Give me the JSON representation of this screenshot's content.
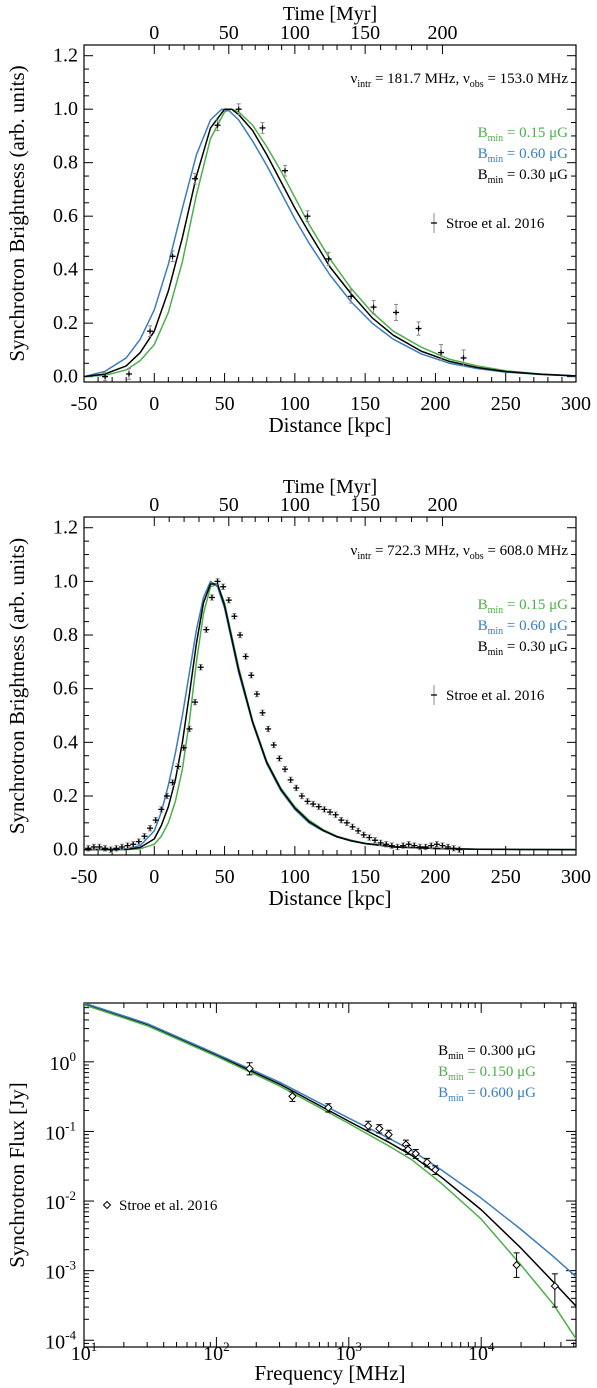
{
  "chart_data": [
    {
      "type": "line",
      "panel": "top",
      "xlabel": "Distance [kpc]",
      "ylabel": "Synchrotron Brightness (arb. units)",
      "top_axis_label": "Time [Myr]",
      "xlim": [
        -50,
        300
      ],
      "ylim": [
        -0.02,
        1.24
      ],
      "top_axis": {
        "ticks": [
          0,
          50,
          100,
          150,
          200
        ],
        "tick_positions_kpc": [
          0,
          53,
          100,
          150,
          205
        ]
      },
      "x_ticks": [
        -50,
        0,
        50,
        100,
        150,
        200,
        250,
        300
      ],
      "y_ticks": [
        0.0,
        0.2,
        0.4,
        0.6,
        0.8,
        1.0,
        1.2
      ],
      "annotation": {
        "nu1": "ν",
        "sub1": "intr",
        "t1": " = 181.7 MHz, ",
        "nu2": "ν",
        "sub2": "obs",
        "t2": " = 153.0 MHz"
      },
      "legend": [
        {
          "pre": "B",
          "sub": "min",
          "post": " = 0.15 μG",
          "color": "#4daf4a"
        },
        {
          "pre": "B",
          "sub": "min",
          "post": " = 0.60 μG",
          "color": "#3a7dbf"
        },
        {
          "pre": "B",
          "sub": "min",
          "post": " = 0.30 μG",
          "color": "#000000"
        }
      ],
      "points_label": "Stroe et al. 2016",
      "series": [
        {
          "name": "B_min = 0.15 μG",
          "color": "#4daf4a",
          "x": [
            -50,
            -35,
            -20,
            -10,
            0,
            10,
            20,
            30,
            40,
            50,
            55,
            60,
            70,
            80,
            90,
            100,
            110,
            125,
            140,
            155,
            170,
            190,
            210,
            230,
            250,
            275,
            300
          ],
          "y": [
            0.0,
            0.005,
            0.025,
            0.06,
            0.12,
            0.24,
            0.43,
            0.68,
            0.89,
            0.99,
            1.0,
            0.99,
            0.94,
            0.86,
            0.77,
            0.67,
            0.57,
            0.44,
            0.33,
            0.24,
            0.17,
            0.11,
            0.065,
            0.04,
            0.022,
            0.01,
            0.003
          ]
        },
        {
          "name": "B_min = 0.60 μG",
          "color": "#3a7dbf",
          "x": [
            -50,
            -35,
            -20,
            -10,
            0,
            10,
            20,
            30,
            40,
            48,
            53,
            60,
            70,
            80,
            90,
            100,
            110,
            125,
            140,
            155,
            170,
            190,
            210,
            230,
            250,
            275,
            300
          ],
          "y": [
            0.0,
            0.02,
            0.07,
            0.14,
            0.25,
            0.42,
            0.63,
            0.83,
            0.96,
            1.0,
            0.995,
            0.96,
            0.88,
            0.79,
            0.69,
            0.59,
            0.5,
            0.38,
            0.28,
            0.2,
            0.14,
            0.085,
            0.05,
            0.03,
            0.017,
            0.008,
            0.002
          ]
        },
        {
          "name": "B_min = 0.30 μG",
          "color": "#000000",
          "x": [
            -50,
            -35,
            -20,
            -10,
            0,
            10,
            20,
            30,
            40,
            50,
            55,
            60,
            70,
            80,
            90,
            100,
            110,
            125,
            140,
            155,
            170,
            190,
            210,
            230,
            250,
            275,
            300
          ],
          "y": [
            0.0,
            0.01,
            0.04,
            0.09,
            0.17,
            0.32,
            0.52,
            0.75,
            0.93,
            1.0,
            1.0,
            0.98,
            0.92,
            0.83,
            0.73,
            0.63,
            0.54,
            0.41,
            0.31,
            0.22,
            0.155,
            0.095,
            0.057,
            0.034,
            0.019,
            0.009,
            0.003
          ]
        }
      ],
      "points": {
        "x": [
          -35,
          -18,
          -3,
          13,
          29,
          45,
          60,
          77,
          93,
          109,
          124,
          140,
          156,
          172,
          188,
          204,
          220
        ],
        "y": [
          0.0,
          0.01,
          0.17,
          0.45,
          0.74,
          0.94,
          1.0,
          0.93,
          0.77,
          0.6,
          0.44,
          0.3,
          0.26,
          0.24,
          0.18,
          0.09,
          0.07
        ],
        "yerr": [
          0.015,
          0.02,
          0.02,
          0.02,
          0.02,
          0.02,
          0.02,
          0.02,
          0.02,
          0.02,
          0.025,
          0.025,
          0.025,
          0.03,
          0.025,
          0.03,
          0.03
        ]
      }
    },
    {
      "type": "line",
      "panel": "middle",
      "xlabel": "Distance [kpc]",
      "ylabel": "Synchrotron Brightness (arb. units)",
      "top_axis_label": "Time [Myr]",
      "xlim": [
        -50,
        300
      ],
      "ylim": [
        -0.02,
        1.24
      ],
      "top_axis": {
        "ticks": [
          0,
          50,
          100,
          150,
          200
        ],
        "tick_positions_kpc": [
          0,
          53,
          100,
          150,
          205
        ]
      },
      "x_ticks": [
        -50,
        0,
        50,
        100,
        150,
        200,
        250,
        300
      ],
      "y_ticks": [
        0.0,
        0.2,
        0.4,
        0.6,
        0.8,
        1.0,
        1.2
      ],
      "annotation": {
        "nu1": "ν",
        "sub1": "intr",
        "t1": " = 722.3 MHz, ",
        "nu2": "ν",
        "sub2": "obs",
        "t2": " = 608.0 MHz"
      },
      "legend": [
        {
          "pre": "B",
          "sub": "min",
          "post": " = 0.15 μG",
          "color": "#4daf4a"
        },
        {
          "pre": "B",
          "sub": "min",
          "post": " = 0.60 μG",
          "color": "#3a7dbf"
        },
        {
          "pre": "B",
          "sub": "min",
          "post": " = 0.30 μG",
          "color": "#000000"
        }
      ],
      "points_label": "Stroe et al. 2016",
      "series": [
        {
          "name": "B_min = 0.15 μG",
          "color": "#4daf4a",
          "x": [
            -50,
            -20,
            -10,
            0,
            5,
            10,
            15,
            20,
            25,
            30,
            35,
            40,
            45,
            50,
            55,
            60,
            70,
            80,
            90,
            100,
            110,
            120,
            130,
            140,
            150,
            170,
            200,
            230,
            260,
            300
          ],
          "y": [
            0.0,
            0.0,
            0.003,
            0.02,
            0.05,
            0.1,
            0.18,
            0.3,
            0.48,
            0.7,
            0.88,
            0.98,
            0.99,
            0.92,
            0.8,
            0.68,
            0.48,
            0.33,
            0.23,
            0.16,
            0.11,
            0.075,
            0.05,
            0.035,
            0.024,
            0.011,
            0.004,
            0.0015,
            0.0005,
            0.0
          ]
        },
        {
          "name": "B_min = 0.60 μG",
          "color": "#3a7dbf",
          "x": [
            -50,
            -20,
            -10,
            0,
            5,
            10,
            15,
            20,
            25,
            30,
            35,
            40,
            45,
            50,
            55,
            60,
            70,
            80,
            90,
            100,
            110,
            120,
            130,
            140,
            150,
            170,
            200,
            230,
            260,
            300
          ],
          "y": [
            0.0,
            0.003,
            0.015,
            0.07,
            0.14,
            0.24,
            0.36,
            0.5,
            0.66,
            0.82,
            0.94,
            1.0,
            0.98,
            0.9,
            0.78,
            0.66,
            0.47,
            0.32,
            0.22,
            0.15,
            0.1,
            0.07,
            0.047,
            0.032,
            0.022,
            0.01,
            0.004,
            0.0015,
            0.0005,
            0.0
          ]
        },
        {
          "name": "B_min = 0.30 μG",
          "color": "#000000",
          "x": [
            -50,
            -20,
            -10,
            0,
            5,
            10,
            15,
            20,
            25,
            30,
            35,
            40,
            45,
            50,
            55,
            60,
            70,
            80,
            90,
            100,
            110,
            120,
            130,
            140,
            150,
            170,
            200,
            230,
            260,
            300
          ],
          "y": [
            0.0,
            0.001,
            0.008,
            0.04,
            0.09,
            0.16,
            0.26,
            0.4,
            0.58,
            0.77,
            0.92,
            0.99,
            0.99,
            0.91,
            0.79,
            0.67,
            0.475,
            0.325,
            0.225,
            0.155,
            0.105,
            0.072,
            0.048,
            0.033,
            0.023,
            0.0105,
            0.004,
            0.0015,
            0.0005,
            0.0
          ]
        }
      ],
      "points": {
        "x": [
          -47,
          -43,
          -39,
          -35,
          -31,
          -27,
          -23,
          -19,
          -15,
          -11,
          -7,
          -3,
          1,
          5,
          9,
          13,
          17,
          21,
          25,
          29,
          33,
          37,
          41,
          45,
          49,
          53,
          57,
          61,
          65,
          69,
          73,
          77,
          81,
          85,
          89,
          93,
          97,
          101,
          105,
          109,
          113,
          117,
          121,
          125,
          129,
          133,
          137,
          141,
          145,
          149,
          153,
          157,
          161,
          165,
          169,
          173,
          177,
          181,
          185,
          189,
          193,
          197,
          201,
          205,
          209,
          213,
          217
        ],
        "y": [
          0.005,
          0.01,
          0.01,
          0.005,
          0.0,
          0.005,
          0.01,
          0.015,
          0.02,
          0.03,
          0.05,
          0.08,
          0.11,
          0.15,
          0.2,
          0.25,
          0.31,
          0.38,
          0.45,
          0.55,
          0.68,
          0.82,
          0.94,
          1.0,
          0.98,
          0.93,
          0.87,
          0.8,
          0.72,
          0.65,
          0.58,
          0.51,
          0.45,
          0.39,
          0.34,
          0.3,
          0.26,
          0.23,
          0.2,
          0.18,
          0.17,
          0.16,
          0.15,
          0.14,
          0.13,
          0.11,
          0.1,
          0.085,
          0.07,
          0.055,
          0.045,
          0.035,
          0.025,
          0.02,
          0.015,
          0.01,
          0.015,
          0.02,
          0.015,
          0.01,
          0.01,
          0.015,
          0.02,
          0.015,
          0.01,
          0.005,
          0.0
        ],
        "yerr": 0.01
      }
    },
    {
      "type": "line",
      "panel": "bottom",
      "xscale": "log",
      "yscale": "log",
      "xlabel": "Frequency [MHz]",
      "ylabel": "Synchrotron Flux [Jy]",
      "xlim": [
        10,
        52000
      ],
      "ylim": [
        8e-05,
        7
      ],
      "x_ticks": [
        {
          "base": "10",
          "exp": "1",
          "value": 10
        },
        {
          "base": "10",
          "exp": "2",
          "value": 100
        },
        {
          "base": "10",
          "exp": "3",
          "value": 1000
        },
        {
          "base": "10",
          "exp": "4",
          "value": 10000
        }
      ],
      "y_ticks": [
        {
          "base": "10",
          "exp": "-4",
          "value": 0.0001
        },
        {
          "base": "10",
          "exp": "-3",
          "value": 0.001
        },
        {
          "base": "10",
          "exp": "-2",
          "value": 0.01
        },
        {
          "base": "10",
          "exp": "-1",
          "value": 0.1
        },
        {
          "base": "10",
          "exp": "0",
          "value": 1
        }
      ],
      "legend": [
        {
          "pre": "B",
          "sub": "min",
          "post": " = 0.300 μG",
          "color": "#000000"
        },
        {
          "pre": "B",
          "sub": "min",
          "post": " = 0.150 μG",
          "color": "#4daf4a"
        },
        {
          "pre": "B",
          "sub": "min",
          "post": " = 0.600 μG",
          "color": "#3a7dbf"
        }
      ],
      "points_label": "Stroe et al. 2016",
      "series": [
        {
          "name": "B_min = 0.300 μG",
          "color": "#000000",
          "x": [
            10,
            30,
            100,
            300,
            1000,
            2000,
            3000,
            5000,
            10000,
            20000,
            35000,
            52000
          ],
          "y": [
            6.8,
            3.4,
            1.25,
            0.48,
            0.14,
            0.07,
            0.045,
            0.022,
            0.0075,
            0.0021,
            0.00069,
            0.00031
          ]
        },
        {
          "name": "B_min = 0.150 μG",
          "color": "#4daf4a",
          "x": [
            10,
            30,
            100,
            300,
            1000,
            2000,
            3000,
            5000,
            10000,
            20000,
            35000,
            52000
          ],
          "y": [
            6.6,
            3.3,
            1.2,
            0.45,
            0.13,
            0.062,
            0.039,
            0.018,
            0.0055,
            0.0012,
            0.00033,
            0.000105
          ]
        },
        {
          "name": "B_min = 0.600 μG",
          "color": "#3a7dbf",
          "x": [
            10,
            30,
            100,
            300,
            1000,
            2000,
            3000,
            5000,
            10000,
            20000,
            35000,
            52000
          ],
          "y": [
            7.0,
            3.55,
            1.3,
            0.51,
            0.155,
            0.08,
            0.053,
            0.028,
            0.011,
            0.0039,
            0.0016,
            0.00082
          ]
        }
      ],
      "points": {
        "x": [
          178,
          375,
          700,
          1400,
          1700,
          2000,
          2700,
          2800,
          3200,
          3900,
          4500,
          18500,
          36000
        ],
        "y": [
          0.8,
          0.32,
          0.22,
          0.12,
          0.11,
          0.09,
          0.065,
          0.055,
          0.048,
          0.036,
          0.028,
          0.0012,
          0.0006
        ],
        "yerr_low": [
          0.65,
          0.27,
          0.19,
          0.105,
          0.095,
          0.078,
          0.055,
          0.047,
          0.041,
          0.031,
          0.024,
          0.0008,
          0.0003
        ],
        "yerr_high": [
          0.97,
          0.37,
          0.25,
          0.14,
          0.125,
          0.104,
          0.075,
          0.063,
          0.055,
          0.041,
          0.032,
          0.0018,
          0.0009
        ]
      }
    }
  ]
}
